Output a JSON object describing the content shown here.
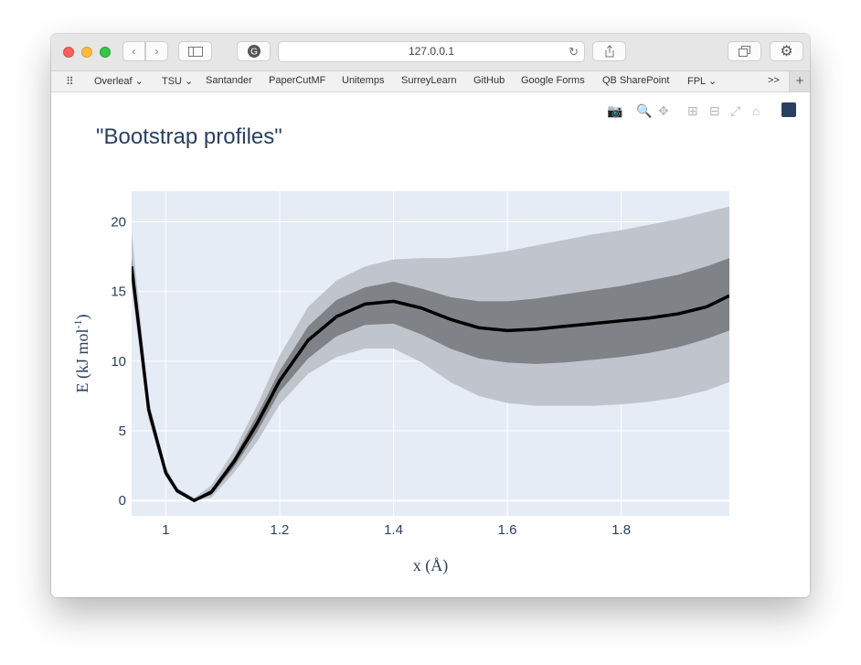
{
  "browser": {
    "url": "127.0.0.1",
    "bookmarks": [
      "Overleaf",
      "TSU",
      "Santander",
      "PaperCutMF",
      "Unitemps",
      "SurreyLearn",
      "GitHub",
      "Google Forms",
      "QB SharePoint",
      "FPL"
    ],
    "overflow_label": ">>",
    "new_tab_label": "+"
  },
  "chart_data": {
    "type": "line",
    "title": "\"Bootstrap profiles\"",
    "xlabel": "x (Å)",
    "ylabel_main": "E (kJ mol",
    "ylabel_sup": "-1",
    "ylabel_close": ")",
    "xlim": [
      0.94,
      1.99
    ],
    "ylim": [
      -1.1,
      22.2
    ],
    "xticks": [
      1,
      1.2,
      1.4,
      1.6,
      1.8
    ],
    "xtick_labels": [
      "1",
      "1.2",
      "1.4",
      "1.6",
      "1.8"
    ],
    "yticks": [
      0,
      5,
      10,
      15,
      20
    ],
    "ytick_labels": [
      "0",
      "5",
      "10",
      "15",
      "20"
    ],
    "x": [
      0.94,
      0.97,
      1.0,
      1.02,
      1.05,
      1.08,
      1.12,
      1.16,
      1.2,
      1.25,
      1.3,
      1.35,
      1.4,
      1.45,
      1.5,
      1.55,
      1.6,
      1.65,
      1.7,
      1.75,
      1.8,
      1.85,
      1.9,
      1.95,
      1.99
    ],
    "series": [
      {
        "values": [
          16.8,
          6.5,
          2.0,
          0.7,
          0.0,
          0.6,
          2.8,
          5.5,
          8.6,
          11.5,
          13.2,
          14.1,
          14.3,
          13.8,
          13.0,
          12.4,
          12.2,
          12.3,
          12.5,
          12.7,
          12.9,
          13.1,
          13.4,
          13.9,
          14.7
        ]
      },
      {
        "band": "inner",
        "lower": [
          16.2,
          6.2,
          1.9,
          0.6,
          0.0,
          0.4,
          2.4,
          4.9,
          7.8,
          10.2,
          11.8,
          12.6,
          12.7,
          11.9,
          10.9,
          10.2,
          9.9,
          9.8,
          9.9,
          10.1,
          10.3,
          10.6,
          11.0,
          11.6,
          12.2
        ],
        "upper": [
          17.4,
          6.8,
          2.2,
          0.8,
          0.1,
          0.8,
          3.1,
          6.1,
          9.3,
          12.5,
          14.4,
          15.3,
          15.7,
          15.2,
          14.6,
          14.3,
          14.3,
          14.5,
          14.8,
          15.1,
          15.4,
          15.8,
          16.2,
          16.8,
          17.4
        ]
      },
      {
        "band": "outer",
        "lower": [
          15.3,
          5.8,
          1.7,
          0.5,
          0.0,
          0.2,
          2.0,
          4.2,
          6.9,
          9.1,
          10.3,
          10.9,
          10.9,
          9.9,
          8.5,
          7.5,
          7.0,
          6.8,
          6.8,
          6.8,
          6.9,
          7.1,
          7.4,
          7.9,
          8.5
        ],
        "upper": [
          19.3,
          7.2,
          2.4,
          0.9,
          0.2,
          1.1,
          3.6,
          6.8,
          10.4,
          13.9,
          15.8,
          16.8,
          17.3,
          17.4,
          17.4,
          17.6,
          17.9,
          18.3,
          18.7,
          19.1,
          19.4,
          19.8,
          20.2,
          20.7,
          21.1
        ]
      }
    ],
    "colors": {
      "plot_bg": "#e5ecf6",
      "grid": "#ffffff",
      "line": "#000000",
      "inner_band": "#7f8287",
      "outer_band": "#c0c5cd",
      "text": "#2a3f5f"
    }
  }
}
